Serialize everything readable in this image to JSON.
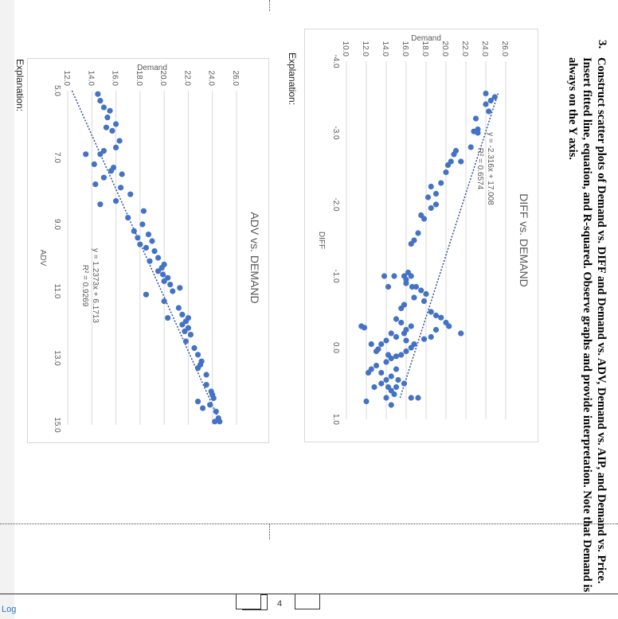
{
  "question": {
    "number": "3.",
    "text": "Construct scatter plots of Demand vs. DIFF and Demand vs. ADV, Demand vs. AIP, and Demand vs. Price. Insert fitted line, equation, and R-squared. Observe graphs and provide interpretation. Note that Demand is always on the Y axis."
  },
  "explanation_label_1": "Explanation:",
  "explanation_label_2": "Explanation:",
  "page_number": "4",
  "footer_fragment": "Log",
  "colors": {
    "marker": "#4472c4",
    "trendline": "#2f4f9f",
    "grid": "#d9d9d9",
    "text": "#595959"
  },
  "chart_data": [
    {
      "type": "scatter",
      "title": "DIFF vs. DEMAND",
      "xlabel": "DIFF",
      "ylabel": "Demand",
      "xlim": [
        -4.0,
        1.0
      ],
      "ylim": [
        10.0,
        26.0
      ],
      "x_ticks": [
        "-4.0",
        "-3.0",
        "-2.0",
        "-1.0",
        "0.0",
        "1.0"
      ],
      "y_ticks": [
        "10.0",
        "12.0",
        "14.0",
        "16.0",
        "18.0",
        "20.0",
        "22.0",
        "24.0",
        "26.0"
      ],
      "grid": "horizontal",
      "equation": "y = -2.316x + 17.008",
      "r_squared": "R² = 0.6574",
      "trendline": {
        "slope": -2.316,
        "intercept": 17.008,
        "x_range": [
          -3.55,
          0.7
        ]
      },
      "points": [
        [
          -3.5,
          24.9
        ],
        [
          -3.45,
          24.5
        ],
        [
          -3.4,
          24.0
        ],
        [
          -3.55,
          24.0
        ],
        [
          -3.3,
          24.3
        ],
        [
          -3.2,
          23.0
        ],
        [
          -3.05,
          23.2
        ],
        [
          -3.0,
          23.2
        ],
        [
          -3.02,
          22.8
        ],
        [
          -2.8,
          22.5
        ],
        [
          -2.6,
          21.5
        ],
        [
          -2.7,
          20.8
        ],
        [
          -2.75,
          21.0
        ],
        [
          -2.6,
          20.5
        ],
        [
          -2.55,
          20.2
        ],
        [
          -2.45,
          20.0
        ],
        [
          -2.3,
          19.5
        ],
        [
          -2.25,
          18.5
        ],
        [
          -2.15,
          19.0
        ],
        [
          -2.1,
          18.2
        ],
        [
          -2.0,
          19.0
        ],
        [
          -1.95,
          18.5
        ],
        [
          -1.85,
          17.5
        ],
        [
          -1.8,
          17.8
        ],
        [
          -1.6,
          17.2
        ],
        [
          -1.5,
          16.8
        ],
        [
          -1.45,
          16.5
        ],
        [
          -1.05,
          16.2
        ],
        [
          -1.0,
          16.5
        ],
        [
          -0.95,
          16.0
        ],
        [
          -1.0,
          15.8
        ],
        [
          -0.9,
          16.0
        ],
        [
          -0.85,
          16.6
        ],
        [
          -0.85,
          17.0
        ],
        [
          -0.8,
          17.5
        ],
        [
          -0.75,
          18.0
        ],
        [
          -0.7,
          16.8
        ],
        [
          -0.65,
          17.8
        ],
        [
          -0.6,
          15.8
        ],
        [
          -0.55,
          15.5
        ],
        [
          -0.5,
          18.5
        ],
        [
          -0.45,
          19.0
        ],
        [
          -0.42,
          19.5
        ],
        [
          -0.35,
          20.0
        ],
        [
          -0.3,
          20.3
        ],
        [
          -0.25,
          19.0
        ],
        [
          -0.2,
          21.5
        ],
        [
          -0.15,
          18.5
        ],
        [
          -0.12,
          17.8
        ],
        [
          -0.3,
          16.5
        ],
        [
          -0.25,
          16.0
        ],
        [
          -0.4,
          15.0
        ],
        [
          -1.0,
          13.8
        ],
        [
          -0.85,
          14.2
        ],
        [
          -1.0,
          14.8
        ],
        [
          -0.35,
          15.5
        ],
        [
          -0.2,
          15.8
        ],
        [
          -0.1,
          16.0
        ],
        [
          -0.05,
          16.8
        ],
        [
          0.0,
          16.5
        ],
        [
          0.05,
          16.0
        ],
        [
          0.1,
          15.5
        ],
        [
          0.12,
          15.0
        ],
        [
          0.15,
          14.5
        ],
        [
          0.2,
          14.0
        ],
        [
          -0.1,
          14.0
        ],
        [
          -0.05,
          13.5
        ],
        [
          0.02,
          13.2
        ],
        [
          0.05,
          13.0
        ],
        [
          0.1,
          14.2
        ],
        [
          -0.15,
          15.0
        ],
        [
          -0.2,
          14.5
        ],
        [
          0.25,
          13.0
        ],
        [
          0.3,
          15.0
        ],
        [
          0.35,
          13.5
        ],
        [
          0.4,
          14.5
        ],
        [
          0.45,
          15.2
        ],
        [
          0.5,
          15.8
        ],
        [
          0.55,
          15.0
        ],
        [
          0.6,
          14.5
        ],
        [
          0.65,
          14.8
        ],
        [
          0.45,
          14.0
        ],
        [
          0.5,
          13.5
        ],
        [
          0.7,
          14.0
        ],
        [
          0.7,
          16.5
        ],
        [
          0.7,
          17.2
        ],
        [
          -0.3,
          11.5
        ],
        [
          -0.28,
          11.8
        ],
        [
          0.55,
          12.8
        ],
        [
          0.3,
          12.5
        ],
        [
          0.35,
          12.2
        ],
        [
          0.75,
          12.0
        ],
        [
          0.8,
          14.5
        ],
        [
          0.55,
          14.2
        ],
        [
          -0.05,
          12.5
        ]
      ]
    },
    {
      "type": "scatter",
      "title": "ADV vs. DEMAND",
      "xlabel": "ADV",
      "ylabel": "Demand",
      "xlim": [
        5.0,
        15.0
      ],
      "ylim": [
        12.0,
        26.0
      ],
      "x_ticks": [
        "5.0",
        "7.0",
        "9.0",
        "11.0",
        "13.0",
        "15.0"
      ],
      "y_ticks": [
        "12.0",
        "14.0",
        "16.0",
        "18.0",
        "20.0",
        "22.0",
        "24.0",
        "26.0"
      ],
      "grid": "horizontal",
      "equation": "y = 1.2373x + 6.1713",
      "r_squared": "R² = 0.9269",
      "trendline": {
        "slope": 1.2373,
        "intercept": 6.1713,
        "x_range": [
          5.0,
          15.0
        ]
      },
      "points": [
        [
          5.1,
          14.5
        ],
        [
          5.3,
          14.7
        ],
        [
          5.5,
          15.0
        ],
        [
          5.6,
          15.5
        ],
        [
          5.8,
          15.3
        ],
        [
          6.0,
          16.0
        ],
        [
          6.1,
          15.2
        ],
        [
          6.2,
          15.7
        ],
        [
          6.5,
          16.3
        ],
        [
          6.7,
          16.0
        ],
        [
          6.8,
          15.0
        ],
        [
          6.9,
          14.7
        ],
        [
          6.9,
          13.5
        ],
        [
          7.2,
          14.2
        ],
        [
          7.3,
          15.8
        ],
        [
          7.4,
          15.6
        ],
        [
          7.5,
          16.5
        ],
        [
          7.6,
          15.0
        ],
        [
          7.8,
          14.3
        ],
        [
          7.9,
          16.4
        ],
        [
          8.1,
          17.2
        ],
        [
          8.3,
          16.0
        ],
        [
          8.4,
          14.7
        ],
        [
          8.6,
          18.3
        ],
        [
          8.8,
          17.0
        ],
        [
          9.0,
          18.2
        ],
        [
          9.2,
          17.5
        ],
        [
          9.3,
          18.7
        ],
        [
          9.4,
          17.8
        ],
        [
          9.5,
          19.0
        ],
        [
          9.6,
          18.0
        ],
        [
          9.7,
          18.5
        ],
        [
          9.8,
          19.2
        ],
        [
          10.0,
          19.5
        ],
        [
          10.1,
          18.8
        ],
        [
          10.2,
          20.0
        ],
        [
          10.3,
          19.8
        ],
        [
          10.4,
          19.5
        ],
        [
          10.5,
          19.9
        ],
        [
          10.6,
          20.3
        ],
        [
          10.7,
          20.0
        ],
        [
          10.8,
          20.5
        ],
        [
          10.9,
          21.3
        ],
        [
          11.0,
          20.7
        ],
        [
          11.1,
          18.5
        ],
        [
          11.3,
          20.0
        ],
        [
          11.5,
          21.2
        ],
        [
          11.7,
          21.5
        ],
        [
          11.8,
          20.3
        ],
        [
          11.9,
          21.8
        ],
        [
          12.0,
          21.5
        ],
        [
          12.1,
          22.0
        ],
        [
          12.2,
          21.7
        ],
        [
          12.3,
          22.2
        ],
        [
          12.5,
          21.8
        ],
        [
          12.7,
          22.5
        ],
        [
          12.9,
          22.8
        ],
        [
          13.1,
          23.1
        ],
        [
          13.3,
          22.8
        ],
        [
          13.5,
          23.5
        ],
        [
          13.8,
          23.5
        ],
        [
          14.0,
          23.9
        ],
        [
          14.1,
          24.0
        ],
        [
          14.2,
          24.1
        ],
        [
          14.4,
          23.8
        ],
        [
          14.6,
          24.3
        ],
        [
          14.8,
          24.5
        ],
        [
          14.9,
          24.2
        ],
        [
          14.9,
          24.6
        ],
        [
          14.5,
          23.2
        ],
        [
          14.3,
          22.8
        ],
        [
          13.2,
          23.0
        ],
        [
          11.8,
          22.0
        ]
      ]
    }
  ]
}
